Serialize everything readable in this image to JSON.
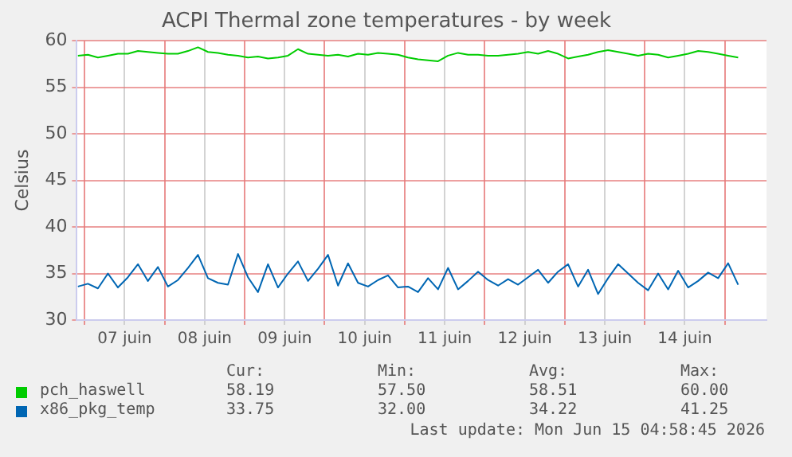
{
  "chart_data": {
    "type": "line",
    "title": "ACPI Thermal zone temperatures - by week",
    "ylabel": "Celsius",
    "x": [
      "2026-06-06T22:00",
      "2026-06-07T01:00",
      "2026-06-07T04:00",
      "2026-06-07T07:00",
      "2026-06-07T10:00",
      "2026-06-07T13:00",
      "2026-06-07T16:00",
      "2026-06-07T19:00",
      "2026-06-07T22:00",
      "2026-06-08T01:00",
      "2026-06-08T04:00",
      "2026-06-08T07:00",
      "2026-06-08T10:00",
      "2026-06-08T13:00",
      "2026-06-08T16:00",
      "2026-06-08T19:00",
      "2026-06-08T22:00",
      "2026-06-09T01:00",
      "2026-06-09T04:00",
      "2026-06-09T07:00",
      "2026-06-09T10:00",
      "2026-06-09T13:00",
      "2026-06-09T16:00",
      "2026-06-09T19:00",
      "2026-06-09T22:00",
      "2026-06-10T01:00",
      "2026-06-10T04:00",
      "2026-06-10T07:00",
      "2026-06-10T10:00",
      "2026-06-10T13:00",
      "2026-06-10T16:00",
      "2026-06-10T19:00",
      "2026-06-10T22:00",
      "2026-06-11T01:00",
      "2026-06-11T04:00",
      "2026-06-11T07:00",
      "2026-06-11T10:00",
      "2026-06-11T13:00",
      "2026-06-11T16:00",
      "2026-06-11T19:00",
      "2026-06-11T22:00",
      "2026-06-12T01:00",
      "2026-06-12T04:00",
      "2026-06-12T07:00",
      "2026-06-12T10:00",
      "2026-06-12T13:00",
      "2026-06-12T16:00",
      "2026-06-12T19:00",
      "2026-06-12T22:00",
      "2026-06-13T01:00",
      "2026-06-13T04:00",
      "2026-06-13T07:00",
      "2026-06-13T10:00",
      "2026-06-13T13:00",
      "2026-06-13T16:00",
      "2026-06-13T19:00",
      "2026-06-13T22:00",
      "2026-06-14T01:00",
      "2026-06-14T04:00",
      "2026-06-14T07:00",
      "2026-06-14T10:00",
      "2026-06-14T13:00",
      "2026-06-14T16:00",
      "2026-06-14T19:00",
      "2026-06-14T22:00",
      "2026-06-15T01:00",
      "2026-06-15T04:00"
    ],
    "series": [
      {
        "name": "pch_haswell",
        "color": "#00cc00",
        "values": [
          58.4,
          58.5,
          58.2,
          58.4,
          58.6,
          58.6,
          58.9,
          58.8,
          58.7,
          58.6,
          58.6,
          58.9,
          59.3,
          58.8,
          58.7,
          58.5,
          58.4,
          58.2,
          58.3,
          58.1,
          58.2,
          58.4,
          59.1,
          58.6,
          58.5,
          58.4,
          58.5,
          58.3,
          58.6,
          58.5,
          58.7,
          58.6,
          58.5,
          58.2,
          58.0,
          57.9,
          57.8,
          58.4,
          58.7,
          58.5,
          58.5,
          58.4,
          58.4,
          58.5,
          58.6,
          58.8,
          58.6,
          58.9,
          58.6,
          58.1,
          58.3,
          58.5,
          58.8,
          59.0,
          58.8,
          58.6,
          58.4,
          58.6,
          58.5,
          58.2,
          58.4,
          58.6,
          58.9,
          58.8,
          58.6,
          58.4,
          58.2
        ]
      },
      {
        "name": "x86_pkg_temp",
        "color": "#0066b3",
        "values": [
          33.6,
          33.9,
          33.4,
          35.0,
          33.5,
          34.6,
          36.0,
          34.2,
          35.7,
          33.6,
          34.3,
          35.6,
          37.0,
          34.5,
          34.0,
          33.8,
          37.1,
          34.6,
          33.0,
          36.0,
          33.5,
          35.0,
          36.3,
          34.2,
          35.5,
          37.0,
          33.7,
          36.1,
          34.0,
          33.6,
          34.3,
          34.8,
          33.5,
          33.6,
          33.0,
          34.5,
          33.3,
          35.6,
          33.3,
          34.2,
          35.2,
          34.3,
          33.7,
          34.4,
          33.8,
          34.6,
          35.4,
          34.0,
          35.2,
          36.0,
          33.6,
          35.4,
          32.8,
          34.5,
          36.0,
          35.0,
          34.0,
          33.2,
          35.0,
          33.3,
          35.3,
          33.5,
          34.2,
          35.1,
          34.5,
          36.1,
          33.8
        ]
      }
    ],
    "xlim": [
      "2026-06-06T21:40",
      "2026-06-15T12:30"
    ],
    "xticks": [
      {
        "value": "2026-06-07T00:00",
        "label": null
      },
      {
        "value": "2026-06-07T12:00",
        "label": "07 juin"
      },
      {
        "value": "2026-06-08T00:00",
        "label": null
      },
      {
        "value": "2026-06-08T12:00",
        "label": "08 juin"
      },
      {
        "value": "2026-06-09T00:00",
        "label": null
      },
      {
        "value": "2026-06-09T12:00",
        "label": "09 juin"
      },
      {
        "value": "2026-06-10T00:00",
        "label": null
      },
      {
        "value": "2026-06-10T12:00",
        "label": "10 juin"
      },
      {
        "value": "2026-06-11T00:00",
        "label": null
      },
      {
        "value": "2026-06-11T12:00",
        "label": "11 juin"
      },
      {
        "value": "2026-06-12T00:00",
        "label": null
      },
      {
        "value": "2026-06-12T12:00",
        "label": "12 juin"
      },
      {
        "value": "2026-06-13T00:00",
        "label": null
      },
      {
        "value": "2026-06-13T12:00",
        "label": "13 juin"
      },
      {
        "value": "2026-06-14T00:00",
        "label": null
      },
      {
        "value": "2026-06-14T12:00",
        "label": "14 juin"
      },
      {
        "value": "2026-06-15T00:00",
        "label": null
      }
    ],
    "ylim": [
      30,
      60
    ],
    "yticks": [
      30,
      35,
      40,
      45,
      50,
      55,
      60
    ],
    "grid": true,
    "legend": "bottom",
    "marker": "none",
    "line_style": "solid",
    "annotations": [
      "Cur:",
      "Min:",
      "Avg:",
      "Max:",
      "58.19",
      "57.50",
      "58.51",
      "60.00",
      "33.75",
      "32.00",
      "34.22",
      "41.25",
      "Last update: Mon Jun 15 04:58:45 2026"
    ]
  }
}
